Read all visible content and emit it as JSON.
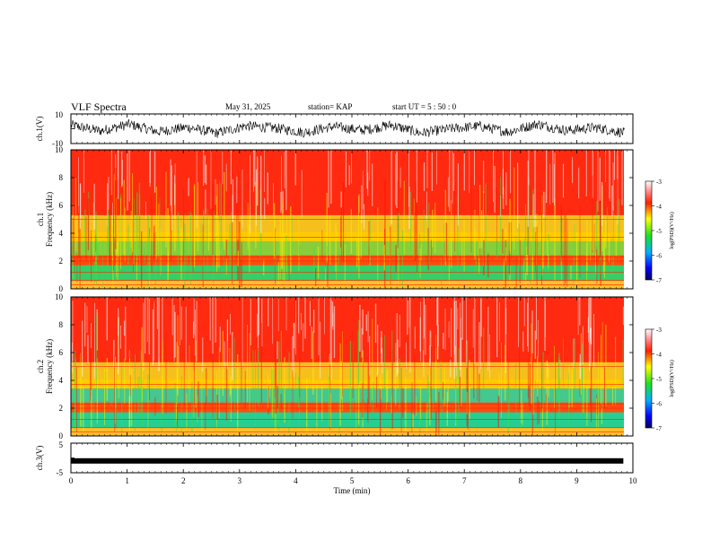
{
  "header": {
    "title": "VLF Spectra",
    "date": "May 31, 2025",
    "station": "station= KAP",
    "start": "start  UT =   5 : 50 : 0"
  },
  "chart_data": [
    {
      "type": "line",
      "panel": "ch1-waveform",
      "ylabel": "ch.1(V)",
      "yticks": [
        "10",
        "-10"
      ],
      "ylim": [
        -10,
        10
      ],
      "xlim": [
        0,
        10
      ],
      "description_series": "noisy waveform",
      "series": [
        {
          "values": [
            2.5,
            -1.5,
            3,
            -2,
            1,
            -3,
            2,
            0.5,
            -2.5,
            1.5,
            -1,
            2.5,
            -3,
            0,
            1.8,
            -2.2,
            3.2,
            -1.2,
            0.8,
            -2.8
          ]
        }
      ]
    },
    {
      "type": "heatmap",
      "panel": "ch1-spectrogram",
      "ylabel": "Frequency  (kHz)",
      "channel_label": "ch.1",
      "yticks": [
        "0",
        "2",
        "4",
        "6",
        "8",
        "10"
      ],
      "ylim": [
        0,
        10
      ],
      "xlim": [
        0,
        10
      ],
      "colorbar": {
        "label": "log(PSD)(V²/Hz)",
        "ticks": [
          "-3",
          "-4",
          "-5",
          "-6",
          "-7"
        ],
        "range": [
          -7,
          -3
        ]
      }
    },
    {
      "type": "heatmap",
      "panel": "ch2-spectrogram",
      "ylabel": "Frequency  (kHz)",
      "channel_label": "ch.2",
      "yticks": [
        "0",
        "2",
        "4",
        "6",
        "8",
        "10"
      ],
      "ylim": [
        0,
        10
      ],
      "xlim": [
        0,
        10
      ],
      "colorbar": {
        "label": "log(PSD)(V²/Hz)",
        "ticks": [
          "-3",
          "-4",
          "-5",
          "-6",
          "-7"
        ],
        "range": [
          -7,
          -3
        ]
      }
    },
    {
      "type": "line",
      "panel": "ch3-waveform",
      "ylabel": "ch.3(V)",
      "yticks": [
        "5",
        "-5"
      ],
      "ylim": [
        -5,
        5
      ],
      "xlim": [
        0,
        9.83
      ],
      "series": [
        {
          "values": [
            -1,
            -1
          ]
        }
      ]
    }
  ],
  "xaxis": {
    "label": "Time  (min)",
    "ticks": [
      "0",
      "1",
      "2",
      "3",
      "4",
      "5",
      "6",
      "7",
      "8",
      "9",
      "10"
    ]
  },
  "colors": {
    "line": "#000000",
    "psd_high": "#ff2000",
    "psd_mid": "#20e040",
    "psd_low": "#0000a0"
  }
}
